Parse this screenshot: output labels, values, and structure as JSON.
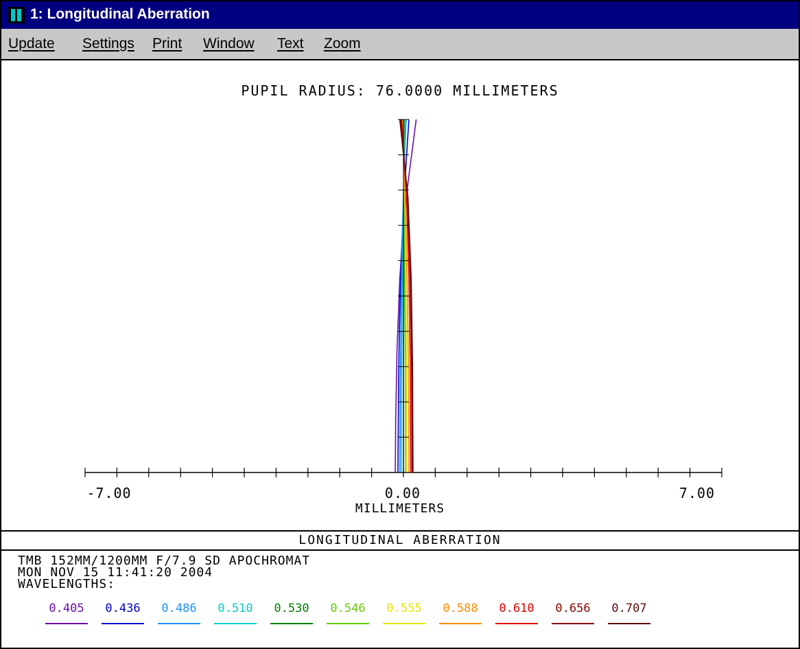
{
  "window": {
    "title": "1: Longitudinal Aberration"
  },
  "menu": {
    "items": [
      "Update",
      "Settings",
      "Print",
      "Window",
      "Text",
      "Zoom"
    ]
  },
  "chart_data": {
    "type": "line",
    "title": "PUPIL RADIUS: 76.0000 MILLIMETERS",
    "xlabel": "MILLIMETERS",
    "ylabel": "",
    "xlim": [
      -7.0,
      7.0
    ],
    "ylim": [
      0.0,
      1.0
    ],
    "x_tick_labels": [
      "-7.00",
      "0.00",
      "7.00"
    ],
    "chart_name": "LONGITUDINAL ABERRATION",
    "lens": "TMB 152MM/1200MM F/7.9 SD APOCHROMAT",
    "date": "MON NOV 15 11:41:20 2004",
    "wavelengths_label": "WAVELENGTHS:",
    "series": [
      {
        "name": "0.405",
        "color": "#6a0dad",
        "points": [
          [
            -0.18,
            0.0
          ],
          [
            -0.17,
            0.15
          ],
          [
            -0.14,
            0.35
          ],
          [
            -0.08,
            0.55
          ],
          [
            0.0,
            0.7
          ],
          [
            0.1,
            0.82
          ],
          [
            0.2,
            0.92
          ],
          [
            0.28,
            1.0
          ]
        ]
      },
      {
        "name": "0.436",
        "color": "#0000cc",
        "points": [
          [
            -0.12,
            0.0
          ],
          [
            -0.11,
            0.2
          ],
          [
            -0.09,
            0.4
          ],
          [
            -0.05,
            0.6
          ],
          [
            0.0,
            0.75
          ],
          [
            0.06,
            0.88
          ],
          [
            0.12,
            1.0
          ]
        ]
      },
      {
        "name": "0.486",
        "color": "#1e90ff",
        "points": [
          [
            -0.08,
            0.0
          ],
          [
            -0.07,
            0.25
          ],
          [
            -0.05,
            0.5
          ],
          [
            -0.02,
            0.7
          ],
          [
            0.02,
            0.88
          ],
          [
            0.06,
            1.0
          ]
        ]
      },
      {
        "name": "0.510",
        "color": "#00cccc",
        "points": [
          [
            -0.05,
            0.0
          ],
          [
            -0.04,
            0.3
          ],
          [
            -0.02,
            0.55
          ],
          [
            0.0,
            0.75
          ],
          [
            0.02,
            0.9
          ],
          [
            0.03,
            1.0
          ]
        ]
      },
      {
        "name": "0.530",
        "color": "#007f00",
        "points": [
          [
            0.0,
            0.0
          ],
          [
            0.0,
            0.3
          ],
          [
            0.01,
            0.6
          ],
          [
            0.01,
            0.85
          ],
          [
            0.01,
            1.0
          ]
        ]
      },
      {
        "name": "0.546",
        "color": "#66cc00",
        "points": [
          [
            0.05,
            0.0
          ],
          [
            0.04,
            0.35
          ],
          [
            0.03,
            0.6
          ],
          [
            0.02,
            0.8
          ],
          [
            0.0,
            1.0
          ]
        ]
      },
      {
        "name": "0.555",
        "color": "#e6e600",
        "points": [
          [
            0.08,
            0.0
          ],
          [
            0.07,
            0.3
          ],
          [
            0.05,
            0.55
          ],
          [
            0.03,
            0.78
          ],
          [
            -0.01,
            1.0
          ]
        ]
      },
      {
        "name": "0.588",
        "color": "#ff8c00",
        "points": [
          [
            0.12,
            0.0
          ],
          [
            0.11,
            0.3
          ],
          [
            0.08,
            0.55
          ],
          [
            0.04,
            0.78
          ],
          [
            -0.03,
            1.0
          ]
        ]
      },
      {
        "name": "0.610",
        "color": "#e00000",
        "points": [
          [
            0.16,
            0.0
          ],
          [
            0.15,
            0.3
          ],
          [
            0.12,
            0.55
          ],
          [
            0.07,
            0.78
          ],
          [
            -0.04,
            1.0
          ]
        ]
      },
      {
        "name": "0.656",
        "color": "#8b0000",
        "points": [
          [
            0.19,
            0.0
          ],
          [
            0.18,
            0.3
          ],
          [
            0.15,
            0.55
          ],
          [
            0.09,
            0.78
          ],
          [
            -0.06,
            1.0
          ]
        ]
      },
      {
        "name": "0.707",
        "color": "#5a0a0a",
        "points": [
          [
            0.21,
            0.0
          ],
          [
            0.2,
            0.3
          ],
          [
            0.17,
            0.55
          ],
          [
            0.1,
            0.78
          ],
          [
            -0.08,
            1.0
          ]
        ]
      }
    ]
  }
}
